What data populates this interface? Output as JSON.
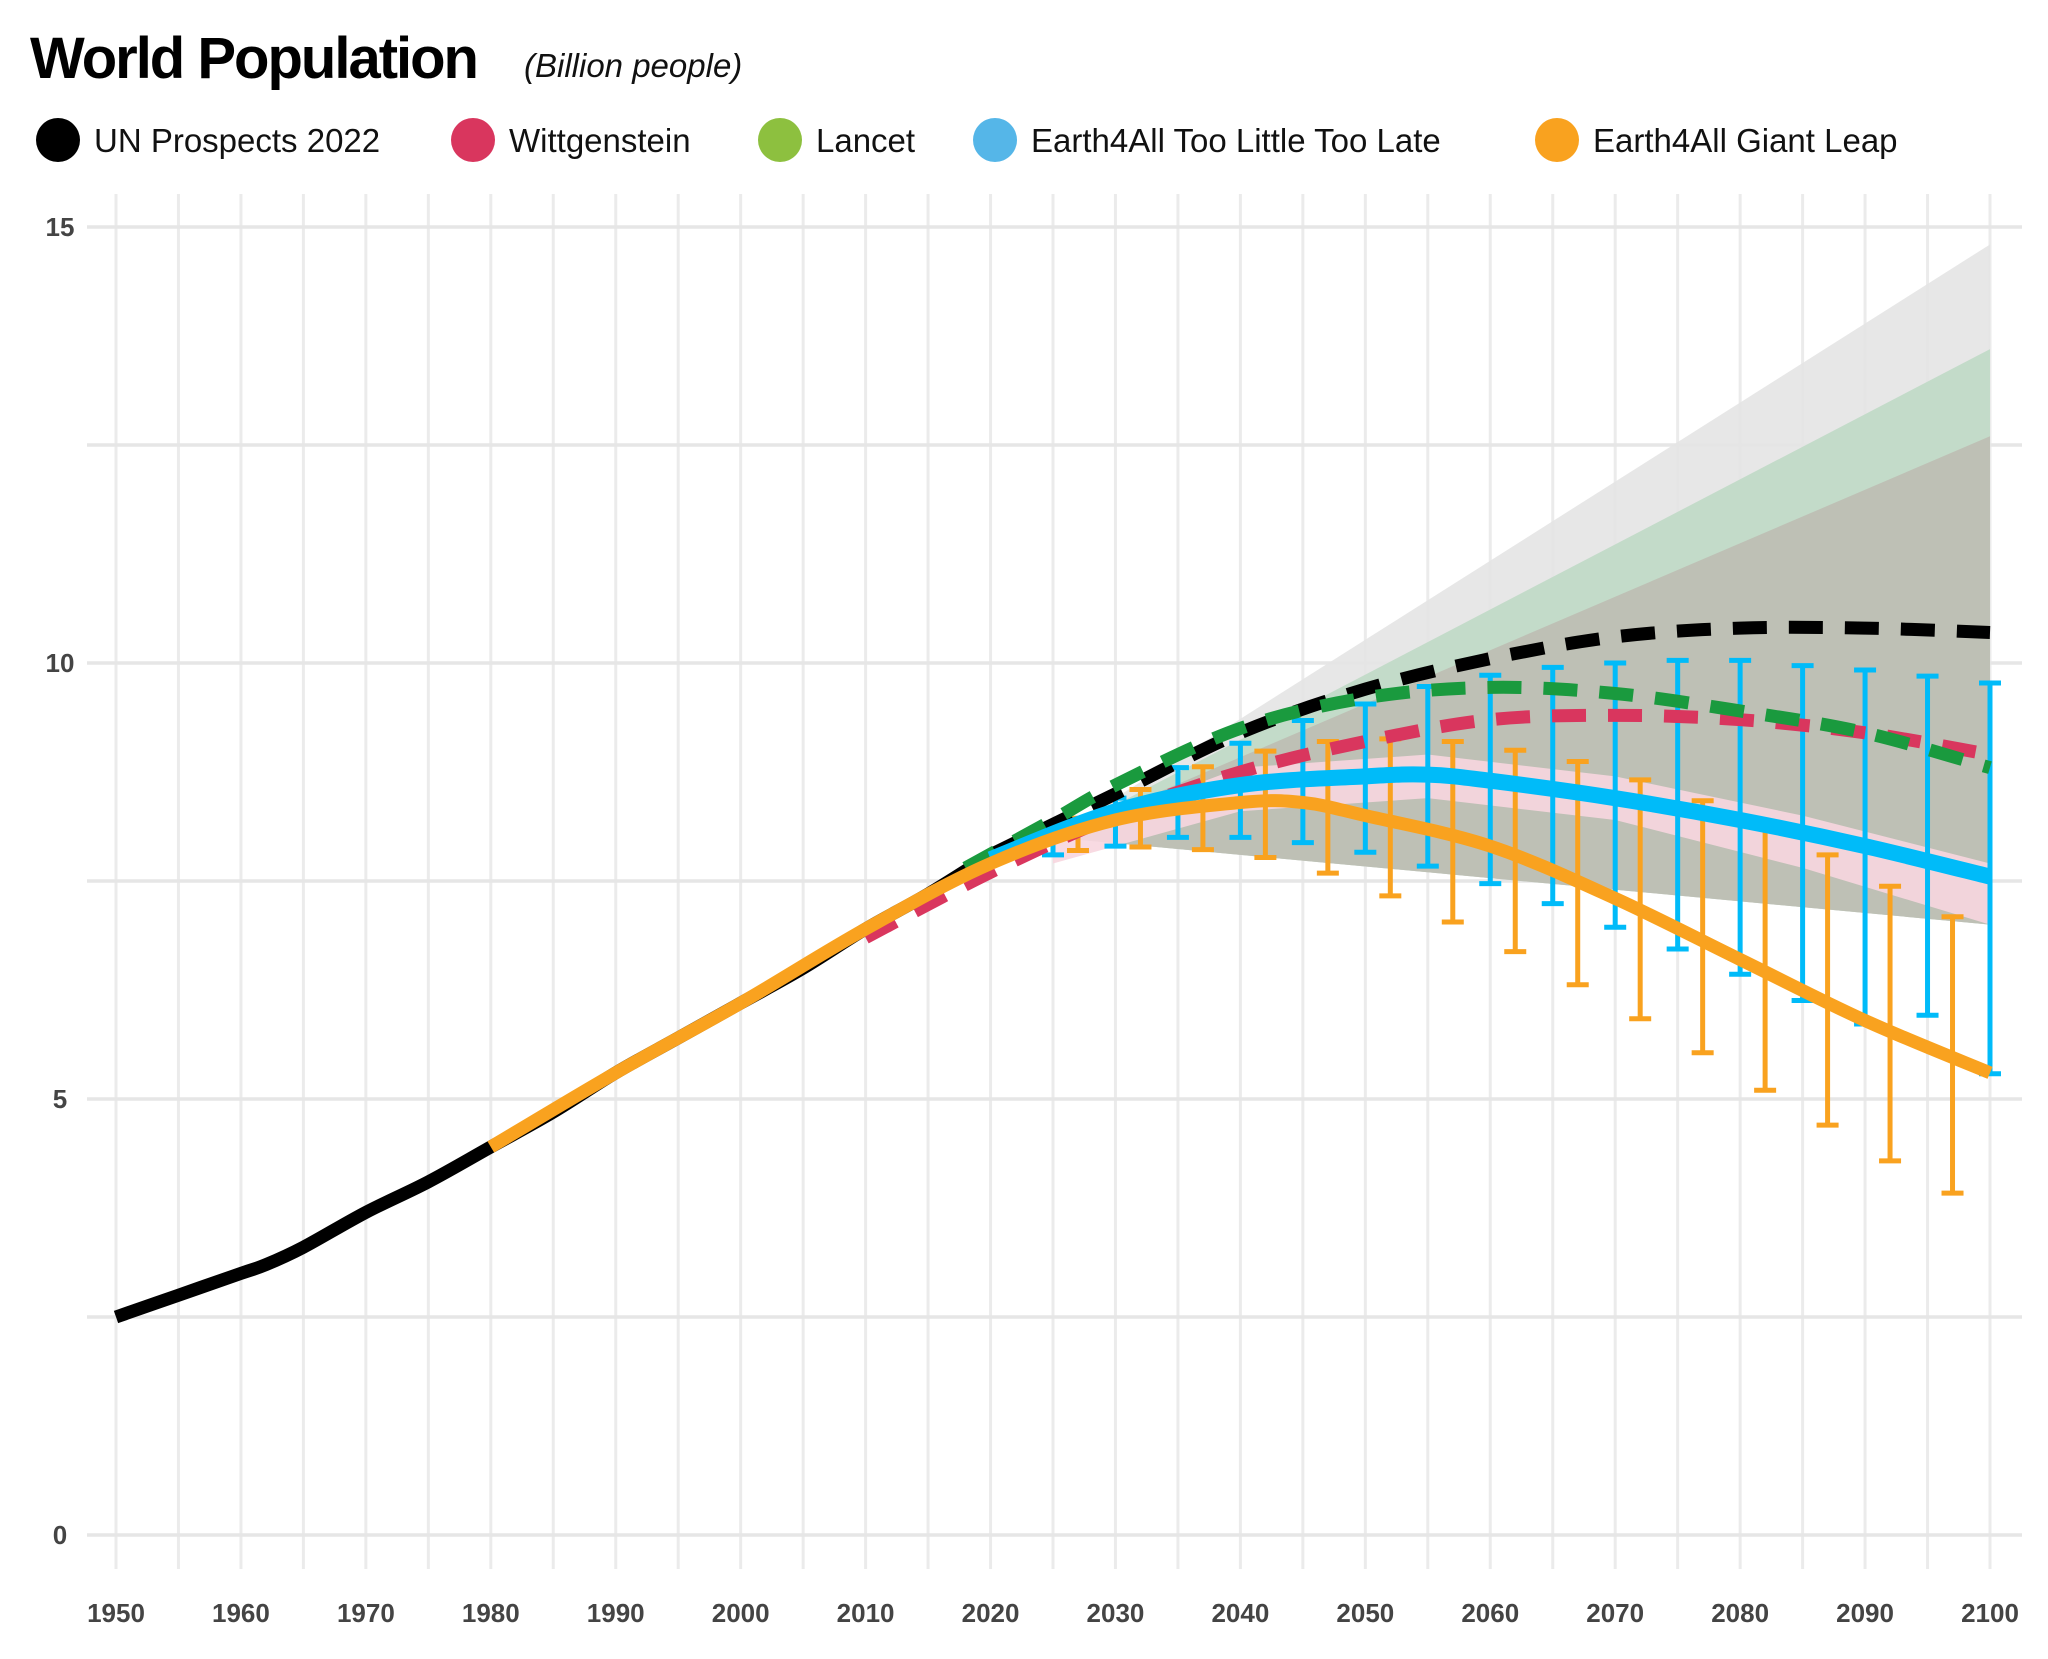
{
  "chart_data": {
    "type": "line",
    "title": "World Population",
    "subtitle": "(Billion people)",
    "xlabel": "",
    "ylabel": "",
    "xlim": [
      1950,
      2100
    ],
    "ylim": [
      0,
      15
    ],
    "grid": true,
    "legend_position": "top-left",
    "x_ticks": [
      "1950",
      "1960",
      "1970",
      "1980",
      "1990",
      "2000",
      "2010",
      "2020",
      "2030",
      "2040",
      "2050",
      "2060",
      "2070",
      "2080",
      "2090",
      "2100"
    ],
    "y_ticks": [
      "0",
      "5",
      "10",
      "15"
    ],
    "legend": [
      {
        "name": "UN Prospects 2022",
        "color": "#000000"
      },
      {
        "name": "Wittgenstein",
        "color": "#d9365e"
      },
      {
        "name": "Lancet",
        "color": "#8dc03f"
      },
      {
        "name": "Earth4All Too Little Too Late",
        "color": "#55b6e8"
      },
      {
        "name": "Earth4All Giant Leap",
        "color": "#f9a21f"
      }
    ],
    "bands": [
      {
        "series": "UN Prospects 2022",
        "color": "#e4e4e4",
        "x": [
          2025,
          2100
        ],
        "upper": [
          8.0,
          14.8
        ],
        "lower": [
          8.0,
          7.0
        ]
      },
      {
        "series": "Lancet",
        "color": "#bfd9c5",
        "x": [
          2025,
          2100
        ],
        "upper": [
          8.0,
          13.6
        ],
        "lower": [
          8.0,
          7.0
        ]
      },
      {
        "series": "UN Prospects 2022",
        "color": "#bebdb3",
        "x": [
          2025,
          2100
        ],
        "upper": [
          8.0,
          12.6
        ],
        "lower": [
          8.0,
          7.0
        ]
      },
      {
        "series": "Wittgenstein",
        "color": "#f7d6df",
        "x": [
          2025,
          2040,
          2055,
          2070,
          2085,
          2100
        ],
        "upper": [
          8.0,
          8.8,
          8.95,
          8.7,
          8.25,
          7.7
        ],
        "lower": [
          7.7,
          8.3,
          8.45,
          8.2,
          7.65,
          7.0
        ]
      }
    ],
    "series": [
      {
        "name": "UN Prospects 2022",
        "style": "solid",
        "color": "#000000",
        "x": [
          1950,
          1955,
          1960,
          1962,
          1965,
          1970,
          1975,
          1980,
          1985,
          1990,
          1995,
          2000,
          2005,
          2010,
          2015,
          2020
        ],
        "y": [
          2.5,
          2.75,
          3.0,
          3.1,
          3.3,
          3.7,
          4.05,
          4.45,
          4.85,
          5.3,
          5.7,
          6.1,
          6.5,
          6.95,
          7.35,
          7.8
        ]
      },
      {
        "name": "UN Prospects 2022",
        "style": "dashed",
        "color": "#000000",
        "x": [
          2020,
          2030,
          2040,
          2050,
          2060,
          2070,
          2080,
          2090,
          2100
        ],
        "y": [
          7.8,
          8.5,
          9.2,
          9.7,
          10.05,
          10.3,
          10.4,
          10.4,
          10.35
        ]
      },
      {
        "name": "Lancet",
        "style": "dashed",
        "color": "#1a9a3e",
        "x": [
          2018,
          2025,
          2030,
          2040,
          2050,
          2060,
          2070,
          2080,
          2090,
          2100
        ],
        "y": [
          7.65,
          8.2,
          8.6,
          9.25,
          9.6,
          9.72,
          9.65,
          9.45,
          9.2,
          8.8
        ]
      },
      {
        "name": "Wittgenstein",
        "style": "dashed",
        "color": "#d9365e",
        "x": [
          2010,
          2020,
          2030,
          2040,
          2050,
          2060,
          2070,
          2080,
          2090,
          2100
        ],
        "y": [
          6.85,
          7.6,
          8.25,
          8.75,
          9.1,
          9.35,
          9.4,
          9.35,
          9.2,
          8.95
        ]
      },
      {
        "name": "Earth4All Too Little Too Late",
        "style": "solid",
        "color": "#00bbf9",
        "x": [
          2020,
          2030,
          2040,
          2050,
          2055,
          2060,
          2070,
          2080,
          2090,
          2100
        ],
        "y": [
          7.75,
          8.3,
          8.6,
          8.7,
          8.72,
          8.65,
          8.45,
          8.2,
          7.9,
          7.55
        ],
        "error_bars": {
          "x": [
            2025,
            2030,
            2035,
            2040,
            2045,
            2050,
            2055,
            2060,
            2065,
            2070,
            2075,
            2080,
            2085,
            2090,
            2095,
            2100
          ],
          "upper": [
            8.12,
            8.45,
            8.8,
            9.08,
            9.34,
            9.53,
            9.73,
            9.86,
            9.95,
            10.0,
            10.03,
            10.03,
            9.97,
            9.92,
            9.85,
            9.77
          ],
          "lower": [
            7.8,
            7.9,
            8.0,
            8.0,
            7.94,
            7.83,
            7.67,
            7.47,
            7.24,
            6.97,
            6.72,
            6.43,
            6.13,
            5.86,
            5.96,
            5.29
          ]
        }
      },
      {
        "name": "Earth4All Giant Leap",
        "style": "solid",
        "color": "#f9a21f",
        "x": [
          1980,
          1990,
          2000,
          2010,
          2020,
          2030,
          2040,
          2045,
          2050,
          2060,
          2070,
          2080,
          2090,
          2100
        ],
        "y": [
          4.45,
          5.3,
          6.1,
          6.95,
          7.7,
          8.2,
          8.4,
          8.4,
          8.25,
          7.9,
          7.3,
          6.6,
          5.9,
          5.3
        ],
        "error_bars": {
          "x": [
            2027,
            2032,
            2037,
            2042,
            2047,
            2052,
            2057,
            2062,
            2067,
            2072,
            2077,
            2082,
            2087,
            2092,
            2097
          ],
          "upper": [
            8.22,
            8.55,
            8.81,
            8.99,
            9.1,
            9.13,
            9.1,
            9.0,
            8.87,
            8.66,
            8.42,
            8.13,
            7.8,
            7.44,
            7.09
          ],
          "lower": [
            7.85,
            7.89,
            7.86,
            7.77,
            7.59,
            7.33,
            7.03,
            6.69,
            6.31,
            5.92,
            5.53,
            5.1,
            4.7,
            4.29,
            3.92
          ]
        }
      }
    ]
  }
}
